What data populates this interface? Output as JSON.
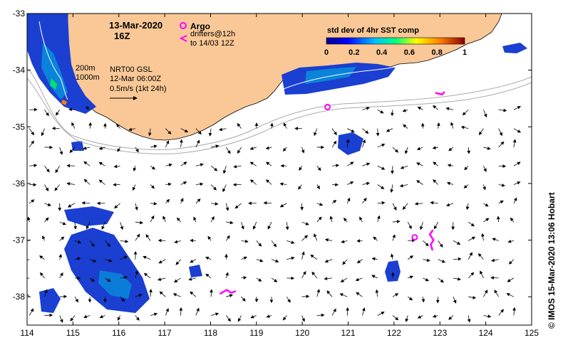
{
  "map": {
    "date_title": "13-Mar-2020",
    "hour_title": "16Z",
    "argo_label": "Argo",
    "drifters_label_1": "drifters@12h",
    "drifters_label_2": "to 14/03 12Z",
    "colorbar_title": "std dev of 4hr SST comp",
    "colorbar_ticks": [
      "0",
      "0.2",
      "0.4",
      "0.6",
      "0.8",
      "1"
    ],
    "isobath_200": "200m",
    "isobath_1000": "1000m",
    "current_source": "NRT00 GSL",
    "current_time": "12-Mar 06:00Z",
    "scale_label": "0.5m/s (1kt 24h)",
    "credit": "© IMOS 15-Mar-2020 13:06 Hobart",
    "lon_ticks": [
      "114",
      "115",
      "116",
      "117",
      "118",
      "119",
      "120",
      "121",
      "122",
      "123",
      "124",
      "125"
    ],
    "lat_ticks": [
      "-33",
      "-34",
      "-35",
      "-36",
      "-37",
      "-38"
    ],
    "extent": {
      "lon": [
        114,
        125
      ],
      "lat": [
        -38.5,
        -33
      ]
    },
    "colors": {
      "land": "#f9c896",
      "argo": "#ff00ff",
      "drifter": "#ff00ff",
      "isobath": "#aaaaaa",
      "colormap": [
        "#00008b",
        "#0000ff",
        "#00bfff",
        "#00ff80",
        "#ffff00",
        "#ff8000",
        "#8b0000"
      ]
    },
    "argo_floats": [
      {
        "lon": 120.55,
        "lat": -34.65
      },
      {
        "lon": 122.45,
        "lat": -36.95
      }
    ],
    "drifter_tracks": [
      [
        [
          122.85,
          -36.82
        ],
        [
          122.78,
          -36.9
        ],
        [
          122.86,
          -37.0
        ],
        [
          122.8,
          -37.08
        ],
        [
          122.84,
          -37.18
        ]
      ],
      [
        [
          118.2,
          -37.95
        ],
        [
          118.35,
          -37.88
        ],
        [
          118.45,
          -37.93
        ],
        [
          118.55,
          -37.9
        ]
      ],
      [
        [
          122.9,
          -34.4
        ],
        [
          123.05,
          -34.43
        ],
        [
          123.1,
          -34.38
        ]
      ]
    ]
  }
}
